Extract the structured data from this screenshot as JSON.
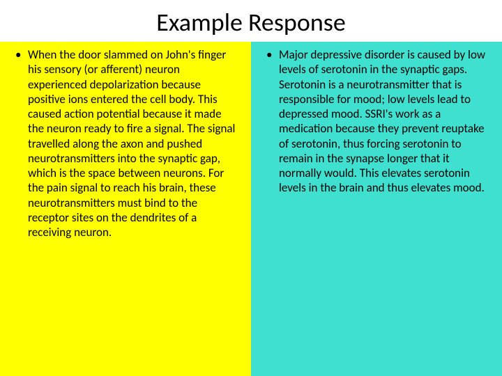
{
  "title": "Example Response",
  "left_column": {
    "background_color": "#ffff00",
    "bullet_text": "When the door slammed on John's finger his sensory (or afferent) neuron experienced depolarization because positive ions entered the cell body. This caused action potential because it made the neuron ready to fire a signal. The signal travelled along the axon and pushed neurotransmitters into the synaptic gap, which is the space between neurons. For the pain signal to reach his brain, these neurotransmitters must bind to the receptor sites on the dendrites of a receiving neuron."
  },
  "right_column": {
    "background_color": "#40e0d0",
    "bullet_text": "Major depressive disorder is caused by low levels of serotonin in the synaptic gaps. Serotonin is a neurotransmitter that is responsible for mood; low levels lead to depressed mood. SSRI's work as a medication because they prevent reuptake of serotonin, thus forcing serotonin to remain in the synapse longer that it normally would. This elevates serotonin levels in the brain and thus elevates mood."
  },
  "styling": {
    "title_fontsize": 36,
    "body_fontsize": 17,
    "font_family": "Calibri",
    "text_color": "#000000",
    "slide_width": 720,
    "slide_height": 540
  }
}
